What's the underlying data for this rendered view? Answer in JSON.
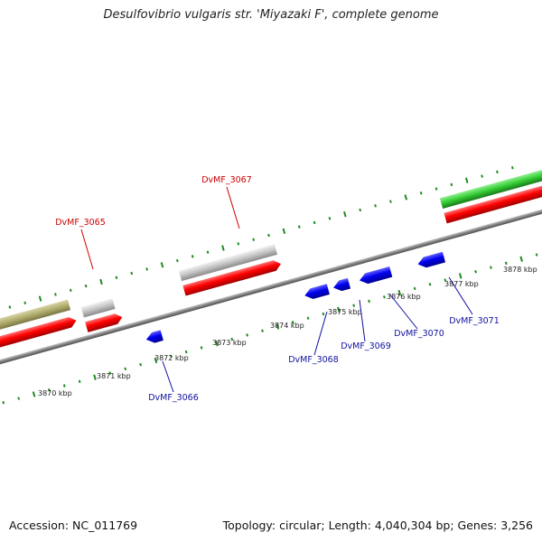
{
  "title": "Desulfovibrio vulgaris str. 'Miyazaki F', complete genome",
  "footer": {
    "accession": "Accession: NC_011769",
    "summary": "Topology: circular; Length: 4,040,304 bp; Genes: 3,256"
  },
  "colors": {
    "backbone": "#808080",
    "tick": "#1e8c1e",
    "forward_label": "#cc0000",
    "reverse_label": "#1010a0",
    "cds_forward": "#ff0000",
    "cds_reverse": "#0000ee",
    "rna": "#c0c0c0",
    "olive": "#b0ab6c",
    "green": "#33cc33"
  },
  "tick_labels": [
    "3870 kbp",
    "3871 kbp",
    "3872 kbp",
    "3873 kbp",
    "3874 kbp",
    "3875 kbp",
    "3876 kbp",
    "3877 kbp",
    "3878 kbp"
  ],
  "gene_labels": {
    "forward": [
      "DvMF_3065",
      "DvMF_3067"
    ],
    "reverse": [
      "DvMF_3066",
      "DvMF_3068",
      "DvMF_3069",
      "DvMF_3070",
      "DvMF_3071"
    ]
  }
}
